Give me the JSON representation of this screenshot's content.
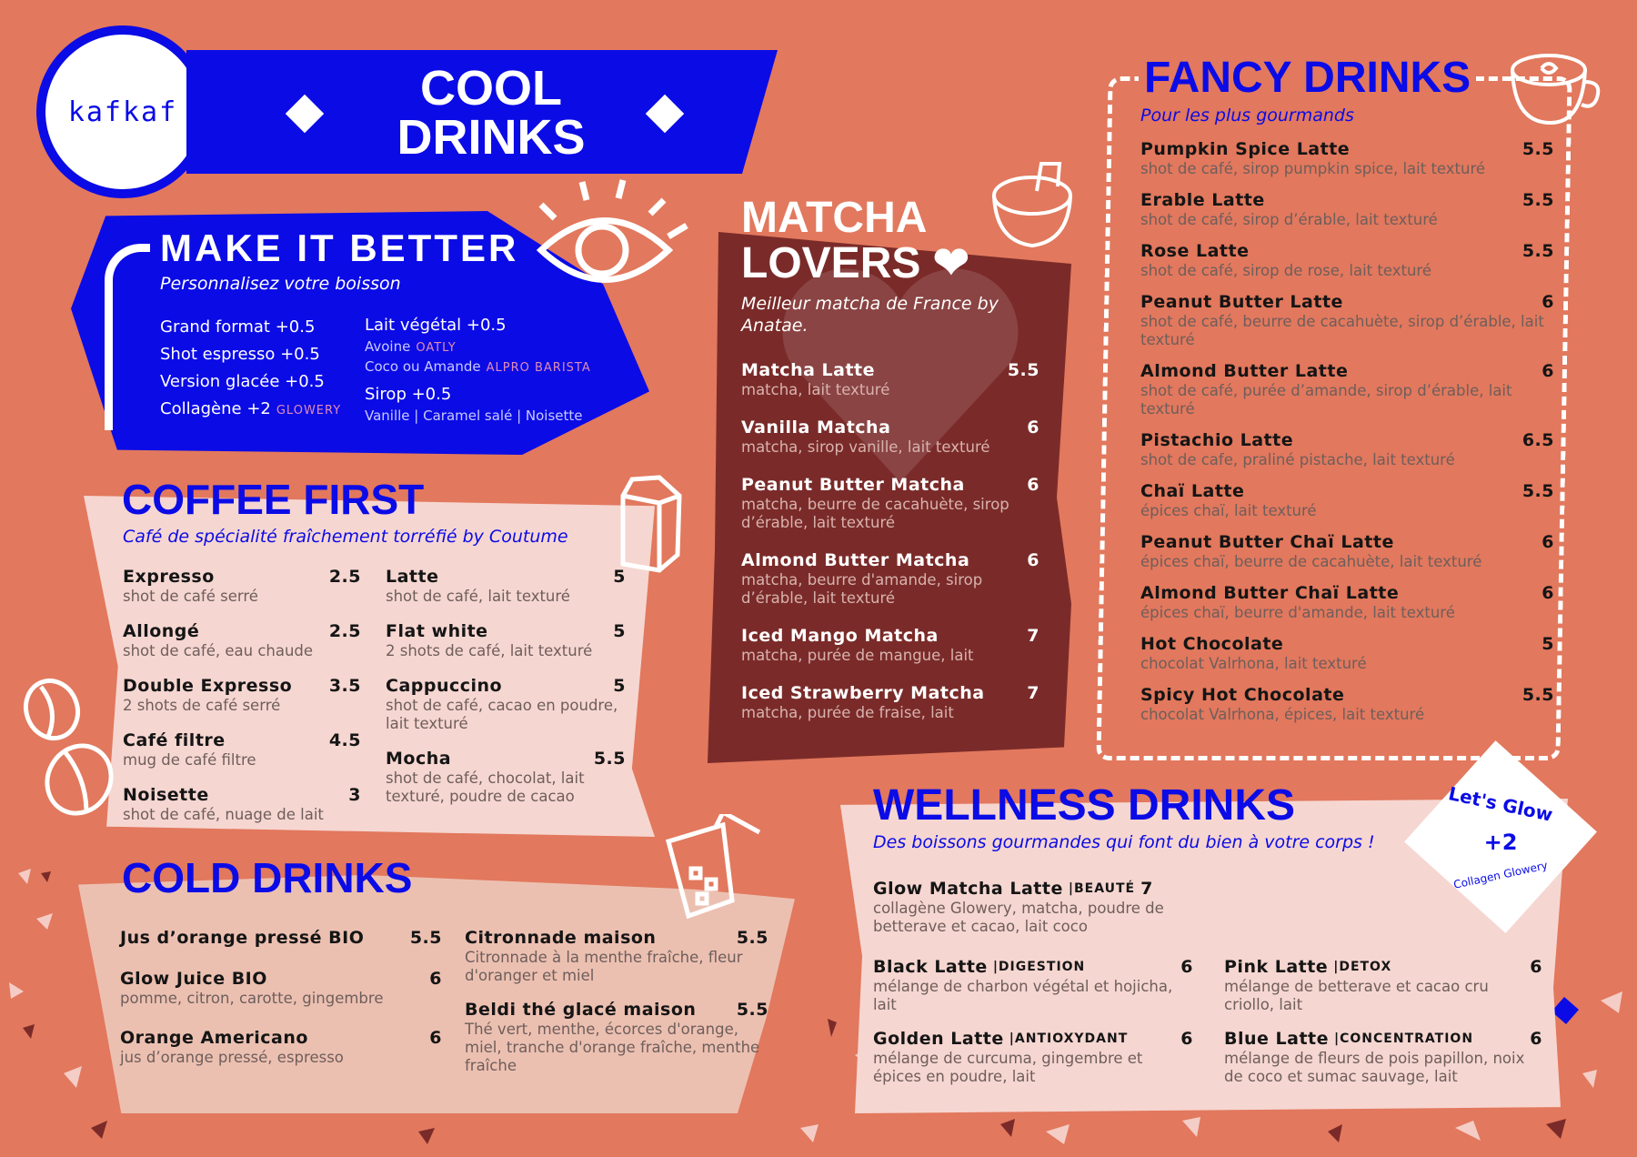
{
  "colors": {
    "background": "#E2785D",
    "blue": "#0B0BE6",
    "pink_panel": "#F6D6D1",
    "matcha_panel": "#7A2B29"
  },
  "logo": {
    "text": "kafkaf"
  },
  "banner": {
    "title_line1": "COOL",
    "title_line2": "DRINKS"
  },
  "make_it_better": {
    "title": "MAKE IT BETTER",
    "subtitle": "Personnalisez votre boisson",
    "left": [
      {
        "text": "Grand format +0.5"
      },
      {
        "text": "Shot espresso +0.5"
      },
      {
        "text": "Version glacée +0.5"
      },
      {
        "text": "Collagène +2",
        "brand": "GLOWERY"
      }
    ],
    "right": [
      {
        "text": "Lait végétal +0.5",
        "big": true
      },
      {
        "text": "Avoine",
        "brand": "OATLY"
      },
      {
        "text": "Coco ou Amande",
        "brand": "ALPRO BARISTA"
      },
      {
        "text": "Sirop +0.5",
        "big": true
      },
      {
        "text": "Vanille | Caramel salé | Noisette"
      }
    ]
  },
  "coffee_first": {
    "title": "COFFEE FIRST",
    "subtitle": "Café de spécialité fraîchement torréfié by Coutume",
    "left": [
      {
        "name": "Expresso",
        "price": "2.5",
        "desc": "shot de café serré"
      },
      {
        "name": "Allongé",
        "price": "2.5",
        "desc": "shot de café, eau chaude"
      },
      {
        "name": "Double Expresso",
        "price": "3.5",
        "desc": "2 shots de café serré"
      },
      {
        "name": "Café filtre",
        "price": "4.5",
        "desc": "mug de café filtre"
      },
      {
        "name": "Noisette",
        "price": "3",
        "desc": "shot de café, nuage de lait"
      }
    ],
    "right": [
      {
        "name": "Latte",
        "price": "5",
        "desc": "shot de café, lait texturé"
      },
      {
        "name": "Flat white",
        "price": "5",
        "desc": "2 shots de café, lait texturé"
      },
      {
        "name": "Cappuccino",
        "price": "5",
        "desc": "shot de café, cacao en poudre, lait texturé"
      },
      {
        "name": "Mocha",
        "price": "5.5",
        "desc": "shot de café, chocolat, lait texturé, poudre de cacao"
      }
    ]
  },
  "cold_drinks": {
    "title": "COLD DRINKS",
    "left": [
      {
        "name": "Jus d’orange pressé BIO",
        "price": "5.5",
        "desc": ""
      },
      {
        "name": "Glow Juice BIO",
        "price": "6",
        "desc": "pomme, citron, carotte, gingembre"
      },
      {
        "name": "Orange Americano",
        "price": "6",
        "desc": "jus d’orange pressé, espresso"
      }
    ],
    "right": [
      {
        "name": "Citronnade maison",
        "price": "5.5",
        "desc": "Citronnade à la menthe fraîche, fleur d'oranger et miel"
      },
      {
        "name": "Beldi thé glacé maison",
        "price": "5.5",
        "desc": "Thé vert, menthe, écorces d'orange, miel, tranche d'orange fraîche, menthe fraîche"
      }
    ]
  },
  "matcha": {
    "title_line1": "MATCHA",
    "title_line2": "LOVERS",
    "subtitle": "Meilleur matcha de France by Anatae.",
    "items": [
      {
        "name": "Matcha Latte",
        "price": "5.5",
        "desc": "matcha, lait texturé"
      },
      {
        "name": "Vanilla Matcha",
        "price": "6",
        "desc": "matcha, sirop vanille, lait texturé"
      },
      {
        "name": "Peanut Butter Matcha",
        "price": "6",
        "desc": "matcha, beurre de cacahuète, sirop d’érable, lait texturé"
      },
      {
        "name": "Almond Butter Matcha",
        "price": "6",
        "desc": "matcha, beurre d'amande, sirop d’érable, lait texturé"
      },
      {
        "name": "Iced Mango Matcha",
        "price": "7",
        "desc": "matcha, purée de mangue, lait"
      },
      {
        "name": "Iced Strawberry Matcha",
        "price": "7",
        "desc": "matcha, purée de fraise, lait"
      }
    ]
  },
  "fancy": {
    "title": "FANCY DRINKS",
    "subtitle": "Pour les plus gourmands",
    "items": [
      {
        "name": "Pumpkin Spice Latte",
        "price": "5.5",
        "desc": "shot de café, sirop pumpkin spice, lait texturé"
      },
      {
        "name": "Erable Latte",
        "price": "5.5",
        "desc": "shot de café, sirop d’érable, lait texturé"
      },
      {
        "name": "Rose Latte",
        "price": "5.5",
        "desc": "shot de café, sirop de rose, lait texturé"
      },
      {
        "name": "Peanut Butter Latte",
        "price": "6",
        "desc": "shot de café, beurre de cacahuète, sirop d’érable, lait texturé"
      },
      {
        "name": "Almond Butter Latte",
        "price": "6",
        "desc": "shot de café, purée d’amande, sirop d’érable, lait texturé"
      },
      {
        "name": "Pistachio Latte",
        "price": "6.5",
        "desc": "shot de cafe, praliné pistache, lait texturé"
      },
      {
        "name": "Chaï Latte",
        "price": "5.5",
        "desc": "épices chaï, lait texturé"
      },
      {
        "name": "Peanut Butter Chaï Latte",
        "price": "6",
        "desc": "épices chaï, beurre de cacahuète, lait texturé"
      },
      {
        "name": "Almond Butter Chaï Latte",
        "price": "6",
        "desc": "épices chaï, beurre d'amande, lait texturé"
      },
      {
        "name": "Hot Chocolate",
        "price": "5",
        "desc": "chocolat Valrhona, lait texturé"
      },
      {
        "name": "Spicy Hot Chocolate",
        "price": "5.5",
        "desc": "chocolat Valrhona, épices, lait texturé"
      }
    ]
  },
  "wellness": {
    "title": "WELLNESS DRINKS",
    "subtitle": "Des boissons gourmandes qui font du bien à votre corps !",
    "glow": {
      "name": "Glow Matcha Latte",
      "tag": "|BEAUTÉ",
      "price": "7",
      "desc": "collagène Glowery, matcha, poudre de betterave et cacao, lait coco"
    },
    "left": [
      {
        "name": "Black Latte",
        "tag": "|DIGESTION",
        "price": "6",
        "desc": "mélange de charbon végétal et hojicha, lait"
      },
      {
        "name": "Golden Latte",
        "tag": "|ANTIOXYDANT",
        "price": "6",
        "desc": "mélange de curcuma, gingembre et épices en poudre, lait"
      }
    ],
    "right": [
      {
        "name": "Pink Latte",
        "tag": "|DETOX",
        "price": "6",
        "desc": "mélange de betterave et cacao cru criollo, lait"
      },
      {
        "name": "Blue Latte",
        "tag": "|CONCENTRATION",
        "price": "6",
        "desc": "mélange de fleurs de pois papillon, noix de coco et sumac sauvage, lait"
      }
    ],
    "sticker": {
      "top": "Let's Glow",
      "value": "+2",
      "bottom": "Collagen Glowery"
    }
  }
}
